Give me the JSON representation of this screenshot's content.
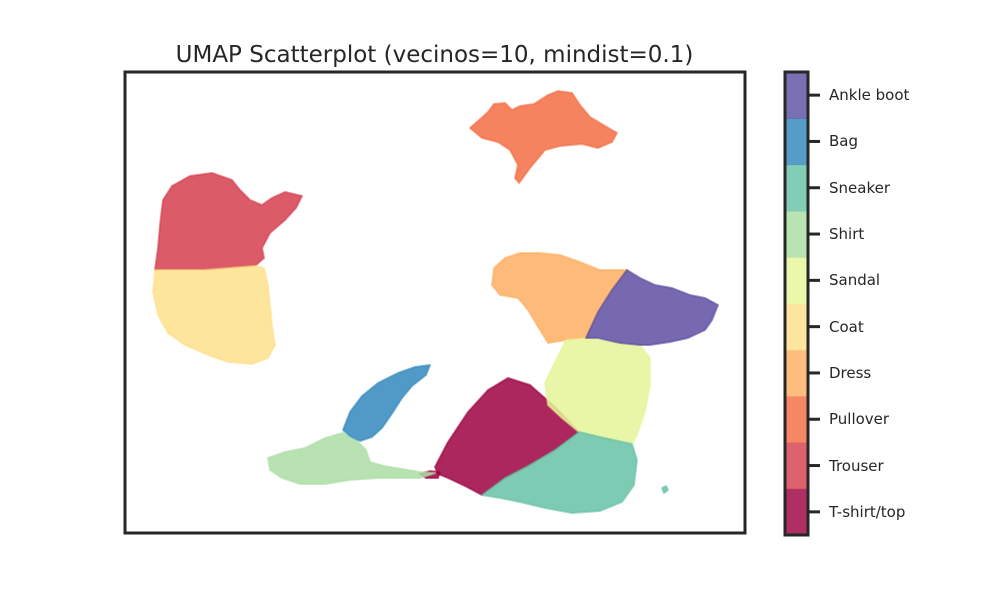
{
  "chart_data": {
    "type": "scatter",
    "title": "UMAP Scatterplot (vecinos=10, mindist=0.1)",
    "xlabel": "",
    "ylabel": "",
    "xticks": "none",
    "yticks": "none",
    "grid": false,
    "legend": "colorbar-right",
    "colorbar": {
      "labels": [
        "T-shirt/top",
        "Trouser",
        "Pullover",
        "Dress",
        "Coat",
        "Sandal",
        "Shirt",
        "Sneaker",
        "Bag",
        "Ankle boot"
      ],
      "colors": [
        "#9e0142",
        "#d53e4f",
        "#f46d43",
        "#fdae61",
        "#fee08b",
        "#e6f598",
        "#abdda4",
        "#66c2a5",
        "#3288bd",
        "#5e4fa2"
      ]
    },
    "clusters": [
      {
        "name": "T-shirt/top",
        "color": "#9e0142"
      },
      {
        "name": "Trouser",
        "color": "#d53e4f"
      },
      {
        "name": "Pullover",
        "color": "#f46d43"
      },
      {
        "name": "Dress",
        "color": "#fdae61"
      },
      {
        "name": "Coat",
        "color": "#fee08b"
      },
      {
        "name": "Sandal",
        "color": "#e6f598"
      },
      {
        "name": "Shirt",
        "color": "#abdda4"
      },
      {
        "name": "Sneaker",
        "color": "#66c2a5"
      },
      {
        "name": "Bag",
        "color": "#3288bd"
      },
      {
        "name": "Ankle boot",
        "color": "#5e4fa2"
      }
    ]
  }
}
